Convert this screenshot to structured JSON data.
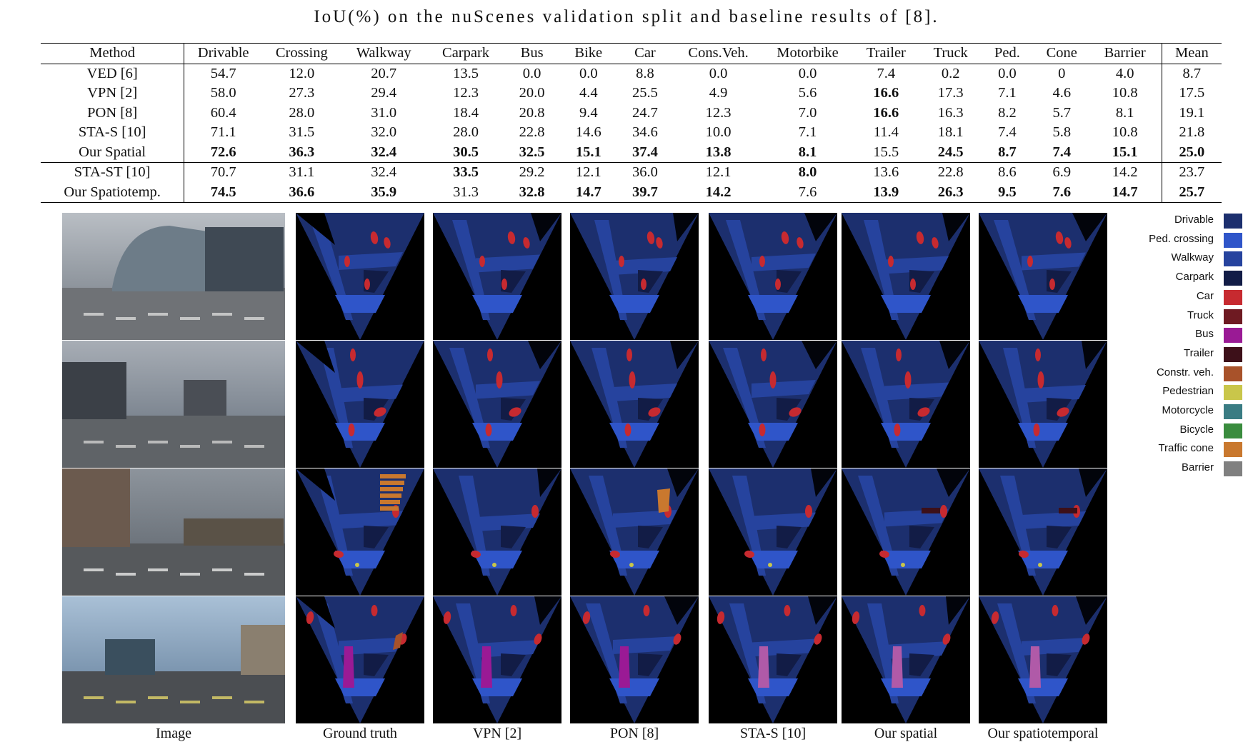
{
  "title": "IoU(%) on the nuScenes validation split and baseline results of [8].",
  "table": {
    "columns": [
      "Method",
      "Drivable",
      "Crossing",
      "Walkway",
      "Carpark",
      "Bus",
      "Bike",
      "Car",
      "Cons.Veh.",
      "Motorbike",
      "Trailer",
      "Truck",
      "Ped.",
      "Cone",
      "Barrier",
      "Mean"
    ],
    "rows": [
      {
        "method": "VED [6]",
        "values": [
          "54.7",
          "12.0",
          "20.7",
          "13.5",
          "0.0",
          "0.0",
          "8.8",
          "0.0",
          "0.0",
          "7.4",
          "0.2",
          "0.0",
          "0",
          "4.0",
          "8.7"
        ],
        "bold": []
      },
      {
        "method": "VPN [2]",
        "values": [
          "58.0",
          "27.3",
          "29.4",
          "12.3",
          "20.0",
          "4.4",
          "25.5",
          "4.9",
          "5.6",
          "16.6",
          "17.3",
          "7.1",
          "4.6",
          "10.8",
          "17.5"
        ],
        "bold": [
          9
        ]
      },
      {
        "method": "PON [8]",
        "values": [
          "60.4",
          "28.0",
          "31.0",
          "18.4",
          "20.8",
          "9.4",
          "24.7",
          "12.3",
          "7.0",
          "16.6",
          "16.3",
          "8.2",
          "5.7",
          "8.1",
          "19.1"
        ],
        "bold": [
          9
        ]
      },
      {
        "method": "STA-S [10]",
        "values": [
          "71.1",
          "31.5",
          "32.0",
          "28.0",
          "22.8",
          "14.6",
          "34.6",
          "10.0",
          "7.1",
          "11.4",
          "18.1",
          "7.4",
          "5.8",
          "10.8",
          "21.8"
        ],
        "bold": []
      },
      {
        "method": "Our Spatial",
        "values": [
          "72.6",
          "36.3",
          "32.4",
          "30.5",
          "32.5",
          "15.1",
          "37.4",
          "13.8",
          "8.1",
          "15.5",
          "24.5",
          "8.7",
          "7.4",
          "15.1",
          "25.0"
        ],
        "bold": [
          0,
          1,
          2,
          3,
          4,
          5,
          6,
          7,
          8,
          10,
          11,
          12,
          13,
          14
        ],
        "group_end": true
      },
      {
        "method": "STA-ST [10]",
        "values": [
          "70.7",
          "31.1",
          "32.4",
          "33.5",
          "29.2",
          "12.1",
          "36.0",
          "12.1",
          "8.0",
          "13.6",
          "22.8",
          "8.6",
          "6.9",
          "14.2",
          "23.7"
        ],
        "bold": [
          3,
          8
        ]
      },
      {
        "method": "Our Spatiotemp.",
        "values": [
          "74.5",
          "36.6",
          "35.9",
          "31.3",
          "32.8",
          "14.7",
          "39.7",
          "14.2",
          "7.6",
          "13.9",
          "26.3",
          "9.5",
          "7.6",
          "14.7",
          "25.7"
        ],
        "bold": [
          0,
          1,
          2,
          4,
          5,
          6,
          7,
          9,
          10,
          11,
          12,
          13,
          14
        ],
        "group_end": true
      }
    ]
  },
  "captions": [
    "Image",
    "Ground truth",
    "VPN [2]",
    "PON [8]",
    "STA-S [10]",
    "Our spatial",
    "Our spatiotemporal"
  ],
  "legend": [
    {
      "label": "Drivable",
      "color": "#1c2f6e"
    },
    {
      "label": "Ped. crossing",
      "color": "#2f55c9"
    },
    {
      "label": "Walkway",
      "color": "#26439e"
    },
    {
      "label": "Carpark",
      "color": "#121c46"
    },
    {
      "label": "Car",
      "color": "#c72a30"
    },
    {
      "label": "Truck",
      "color": "#6e1a22"
    },
    {
      "label": "Bus",
      "color": "#9a1a95"
    },
    {
      "label": "Trailer",
      "color": "#3d1019"
    },
    {
      "label": "Constr. veh.",
      "color": "#a8522a"
    },
    {
      "label": "Pedestrian",
      "color": "#c9c64a"
    },
    {
      "label": "Motorcycle",
      "color": "#3a7c83"
    },
    {
      "label": "Bicycle",
      "color": "#3a8c3e"
    },
    {
      "label": "Traffic cone",
      "color": "#c9782e"
    },
    {
      "label": "Barrier",
      "color": "#808080"
    }
  ]
}
